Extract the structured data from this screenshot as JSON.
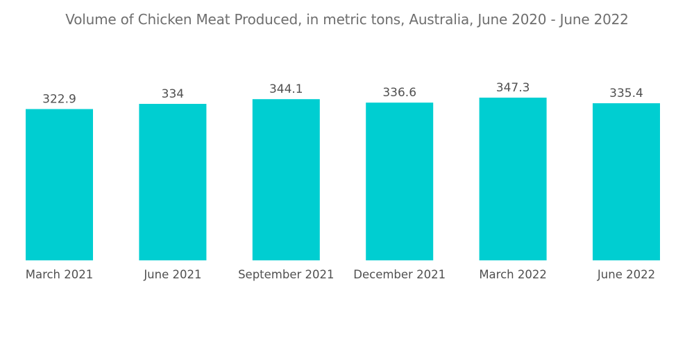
{
  "chart_data": {
    "type": "bar",
    "title": "Volume of Chicken Meat Produced, in metric tons, Australia, June 2020 - June 2022",
    "xlabel": "",
    "ylabel": "",
    "categories": [
      "March 2021",
      "June 2021",
      "September 2021",
      "December 2021",
      "March 2022",
      "June 2022"
    ],
    "values": [
      322.9,
      334,
      344.1,
      336.6,
      347.3,
      335.4
    ],
    "value_labels": [
      "322.9",
      "334",
      "344.1",
      "336.6",
      "347.3",
      "335.4"
    ],
    "ylim": [
      0,
      347.3
    ],
    "grid": false,
    "legend": "none",
    "colors": {
      "bar": "#00ced1",
      "text": "#505050",
      "title": "#6e6e6e"
    }
  }
}
